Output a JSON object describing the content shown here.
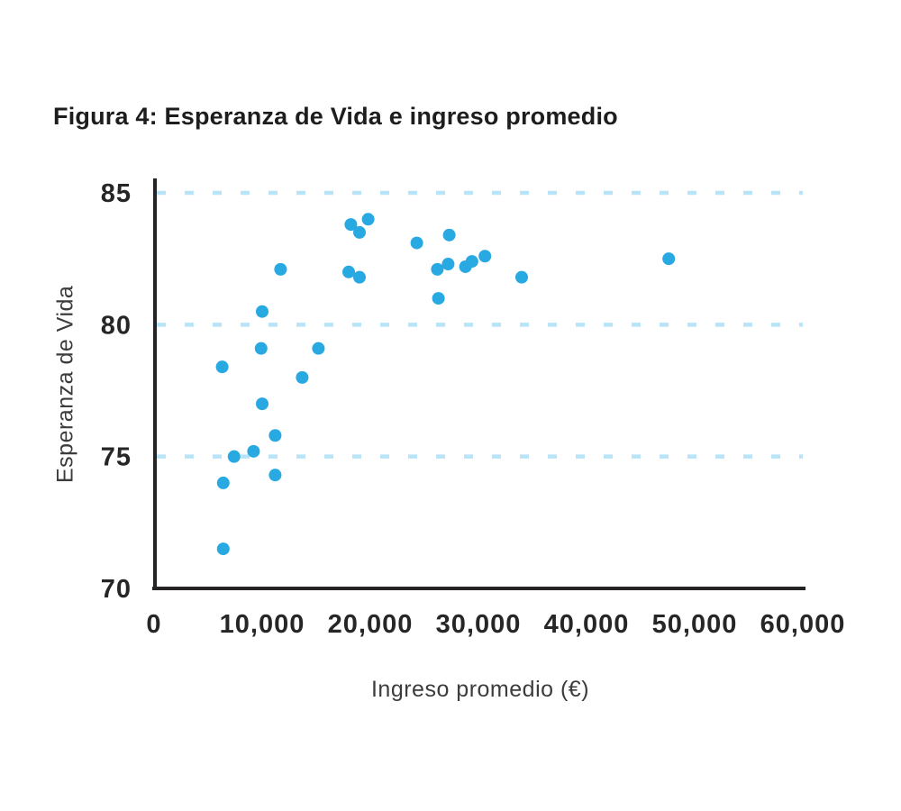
{
  "chart_data": {
    "type": "scatter",
    "title": "Figura 4: Esperanza de Vida e ingreso promedio",
    "xlabel": "Ingreso promedio (€)",
    "ylabel": "Esperanza de Vida",
    "xlim": [
      0,
      60000
    ],
    "ylim": [
      70,
      85
    ],
    "xticks": {
      "values": [
        0,
        10000,
        20000,
        30000,
        40000,
        50000,
        60000
      ],
      "labels": [
        "0",
        "10,000",
        "20,000",
        "30,000",
        "40,000",
        "50,000",
        "60,000"
      ]
    },
    "yticks": {
      "values": [
        70,
        75,
        80,
        85
      ],
      "labels": [
        "70",
        "75",
        "80",
        "85"
      ]
    },
    "gridlines": {
      "orientation": "horizontal",
      "style": "dashed",
      "values": [
        75,
        80,
        85
      ]
    },
    "legend": "none",
    "colors": {
      "point": "#29a9e1",
      "grid": "#b8e4f7",
      "axis": "#262324",
      "title": "#1d1d1d",
      "axis_title": "#3c3c3c",
      "tick_label": "#262626",
      "background": "#ffffff"
    },
    "points": [
      [
        6300,
        78.4
      ],
      [
        6400,
        74.0
      ],
      [
        6400,
        71.5
      ],
      [
        7400,
        75.0
      ],
      [
        9200,
        75.2
      ],
      [
        9900,
        79.1
      ],
      [
        10000,
        80.5
      ],
      [
        10000,
        77.0
      ],
      [
        11200,
        75.8
      ],
      [
        11200,
        74.3
      ],
      [
        11700,
        82.1
      ],
      [
        13700,
        78.0
      ],
      [
        15200,
        79.1
      ],
      [
        18000,
        82.0
      ],
      [
        18200,
        83.8
      ],
      [
        19000,
        83.5
      ],
      [
        19000,
        81.8
      ],
      [
        19800,
        84.0
      ],
      [
        24300,
        83.1
      ],
      [
        26200,
        82.1
      ],
      [
        26300,
        81.0
      ],
      [
        27200,
        82.3
      ],
      [
        27300,
        83.4
      ],
      [
        28800,
        82.2
      ],
      [
        29400,
        82.4
      ],
      [
        30600,
        82.6
      ],
      [
        34000,
        81.8
      ],
      [
        47600,
        82.5
      ]
    ]
  }
}
